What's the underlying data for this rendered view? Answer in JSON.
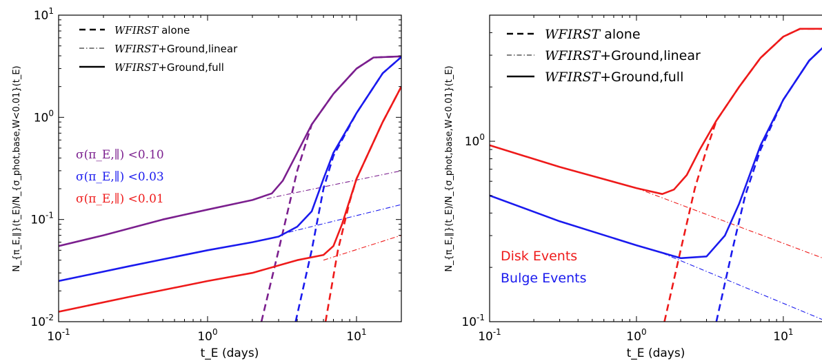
{
  "chart_data": [
    {
      "type": "line",
      "xlabel": "t_E (days)",
      "ylabel": "N_{π_E,∥}(t_E)/N_{σ_phot,base,W<0.01}(t_E)",
      "xscale": "log",
      "yscale": "log",
      "xlim": [
        0.1,
        20
      ],
      "ylim": [
        0.01,
        10
      ],
      "grid": false,
      "x_ticks": [
        {
          "value": 0.1,
          "base": "10",
          "exp": "-1"
        },
        {
          "value": 1,
          "base": "10",
          "exp": "0"
        },
        {
          "value": 10,
          "base": "10",
          "exp": "1"
        }
      ],
      "y_ticks": [
        {
          "value": 0.01,
          "base": "10",
          "exp": "-2"
        },
        {
          "value": 0.1,
          "base": "10",
          "exp": "-1"
        },
        {
          "value": 1,
          "base": "10",
          "exp": "0"
        },
        {
          "value": 10,
          "base": "10",
          "exp": "1"
        }
      ],
      "legend": {
        "placement": "top-left",
        "entries": [
          {
            "style": "dashed",
            "label_italic": "WFIRST",
            "label_rest": " alone"
          },
          {
            "style": "dashdot",
            "label_italic": "WFIRST",
            "label_rest": "+Ground,linear"
          },
          {
            "style": "solid",
            "label_italic": "WFIRST",
            "label_rest": "+Ground,full"
          }
        ]
      },
      "annotations": [
        {
          "text": "σ(π_E,∥) <0.10",
          "color": "#7b1f8e"
        },
        {
          "text": "σ(π_E,∥) <0.03",
          "color": "#1a1aee"
        },
        {
          "text": "σ(π_E,∥) <0.01",
          "color": "#ee1a1a"
        }
      ],
      "series": [
        {
          "color": "#7b1f8e",
          "style": "solid",
          "points": [
            [
              0.1,
              0.055
            ],
            [
              0.2,
              0.07
            ],
            [
              0.5,
              0.1
            ],
            [
              1,
              0.125
            ],
            [
              2,
              0.155
            ],
            [
              2.7,
              0.18
            ],
            [
              3.2,
              0.24
            ],
            [
              4,
              0.45
            ],
            [
              5,
              0.85
            ],
            [
              7,
              1.7
            ],
            [
              10,
              3.0
            ],
            [
              13,
              3.85
            ],
            [
              20,
              3.95
            ]
          ]
        },
        {
          "color": "#7b1f8e",
          "style": "dashdot",
          "points": [
            [
              2.5,
              0.16
            ],
            [
              20,
              0.3
            ]
          ]
        },
        {
          "color": "#7b1f8e",
          "style": "dashed",
          "points": [
            [
              2.3,
              0.01
            ],
            [
              3,
              0.05
            ],
            [
              4,
              0.3
            ],
            [
              5,
              0.85
            ],
            [
              7,
              1.7
            ],
            [
              10,
              3.0
            ],
            [
              13,
              3.85
            ],
            [
              20,
              3.95
            ]
          ]
        },
        {
          "color": "#1a1aee",
          "style": "solid",
          "points": [
            [
              0.1,
              0.025
            ],
            [
              0.3,
              0.035
            ],
            [
              1,
              0.05
            ],
            [
              2,
              0.06
            ],
            [
              3,
              0.068
            ],
            [
              4,
              0.085
            ],
            [
              5,
              0.12
            ],
            [
              6,
              0.25
            ],
            [
              7,
              0.45
            ],
            [
              10,
              1.1
            ],
            [
              15,
              2.7
            ],
            [
              20,
              3.9
            ]
          ]
        },
        {
          "color": "#1a1aee",
          "style": "dashdot",
          "points": [
            [
              3.5,
              0.075
            ],
            [
              20,
              0.14
            ]
          ]
        },
        {
          "color": "#1a1aee",
          "style": "dashed",
          "points": [
            [
              3.9,
              0.01
            ],
            [
              5,
              0.05
            ],
            [
              6,
              0.2
            ],
            [
              7,
              0.42
            ],
            [
              10,
              1.1
            ],
            [
              15,
              2.7
            ],
            [
              20,
              3.9
            ]
          ]
        },
        {
          "color": "#ee1a1a",
          "style": "solid",
          "points": [
            [
              0.1,
              0.0125
            ],
            [
              0.3,
              0.0175
            ],
            [
              1,
              0.025
            ],
            [
              2,
              0.03
            ],
            [
              4,
              0.04
            ],
            [
              6,
              0.045
            ],
            [
              7,
              0.055
            ],
            [
              8,
              0.09
            ],
            [
              10,
              0.25
            ],
            [
              15,
              0.9
            ],
            [
              20,
              2.0
            ]
          ]
        },
        {
          "color": "#ee1a1a",
          "style": "dashdot",
          "points": [
            [
              6,
              0.04
            ],
            [
              20,
              0.07
            ]
          ]
        },
        {
          "color": "#ee1a1a",
          "style": "dashed",
          "points": [
            [
              6.2,
              0.01
            ],
            [
              7.5,
              0.05
            ],
            [
              9,
              0.15
            ],
            [
              10,
              0.25
            ],
            [
              15,
              0.9
            ],
            [
              20,
              2.0
            ]
          ]
        }
      ]
    },
    {
      "type": "line",
      "xlabel": "t_E (days)",
      "ylabel": "N_{π_E,∥}(t_E)/N_{σ_phot,base,W<0.01}(t_E)",
      "xscale": "log",
      "yscale": "log",
      "xlim": [
        0.1,
        20
      ],
      "ylim": [
        0.1,
        5
      ],
      "grid": false,
      "x_ticks": [
        {
          "value": 0.1,
          "base": "10",
          "exp": "-1"
        },
        {
          "value": 1,
          "base": "10",
          "exp": "0"
        },
        {
          "value": 10,
          "base": "10",
          "exp": "1"
        }
      ],
      "y_ticks": [
        {
          "value": 0.1,
          "base": "10",
          "exp": "-1"
        },
        {
          "value": 1,
          "base": "10",
          "exp": "0"
        }
      ],
      "legend": {
        "placement": "top-left",
        "entries": [
          {
            "style": "dashed",
            "label_italic": "WFIRST",
            "label_rest": " alone"
          },
          {
            "style": "dashdot",
            "label_italic": "WFIRST",
            "label_rest": "+Ground,linear"
          },
          {
            "style": "solid",
            "label_italic": "WFIRST",
            "label_rest": "+Ground,full"
          }
        ]
      },
      "annotations": [
        {
          "text": "Disk Events",
          "color": "#ee1a1a"
        },
        {
          "text": "Bulge Events",
          "color": "#1a1aee"
        }
      ],
      "series": [
        {
          "color": "#ee1a1a",
          "style": "solid",
          "points": [
            [
              0.1,
              0.95
            ],
            [
              0.3,
              0.72
            ],
            [
              1,
              0.55
            ],
            [
              1.5,
              0.51
            ],
            [
              1.8,
              0.54
            ],
            [
              2.2,
              0.65
            ],
            [
              2.7,
              0.9
            ],
            [
              3.5,
              1.3
            ],
            [
              5,
              2.0
            ],
            [
              7,
              2.9
            ],
            [
              10,
              3.8
            ],
            [
              13,
              4.2
            ],
            [
              20,
              4.2
            ]
          ]
        },
        {
          "color": "#ee1a1a",
          "style": "dashdot",
          "points": [
            [
              1,
              0.55
            ],
            [
              20,
              0.22
            ]
          ]
        },
        {
          "color": "#ee1a1a",
          "style": "dashed",
          "points": [
            [
              1.55,
              0.1
            ],
            [
              2,
              0.25
            ],
            [
              2.5,
              0.55
            ],
            [
              3,
              0.9
            ],
            [
              3.5,
              1.3
            ],
            [
              5,
              2.0
            ],
            [
              7,
              2.9
            ],
            [
              10,
              3.8
            ],
            [
              13,
              4.2
            ],
            [
              20,
              4.2
            ]
          ]
        },
        {
          "color": "#1a1aee",
          "style": "solid",
          "points": [
            [
              0.1,
              0.5
            ],
            [
              0.3,
              0.36
            ],
            [
              1,
              0.265
            ],
            [
              2,
              0.225
            ],
            [
              3,
              0.23
            ],
            [
              4,
              0.3
            ],
            [
              5,
              0.45
            ],
            [
              7,
              0.95
            ],
            [
              10,
              1.7
            ],
            [
              15,
              2.8
            ],
            [
              20,
              3.5
            ]
          ]
        },
        {
          "color": "#1a1aee",
          "style": "dashdot",
          "points": [
            [
              1.5,
              0.24
            ],
            [
              20,
              0.1
            ]
          ]
        },
        {
          "color": "#1a1aee",
          "style": "dashed",
          "points": [
            [
              3.5,
              0.1
            ],
            [
              4.5,
              0.25
            ],
            [
              5.5,
              0.5
            ],
            [
              7,
              0.9
            ],
            [
              10,
              1.7
            ],
            [
              15,
              2.8
            ],
            [
              20,
              3.5
            ]
          ]
        }
      ]
    }
  ]
}
